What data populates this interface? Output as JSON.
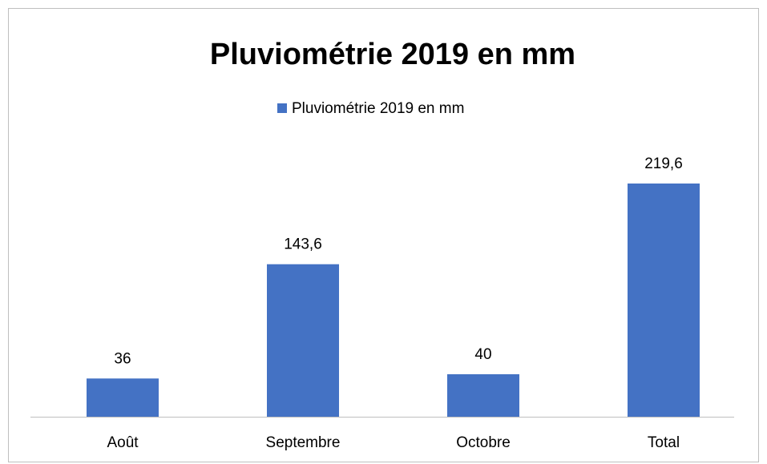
{
  "chart_data": {
    "type": "bar",
    "title": "Pluviométrie 2019 en mm",
    "categories": [
      "Août",
      "Septembre",
      "Octobre",
      "Total"
    ],
    "series": [
      {
        "name": "Pluviométrie 2019 en mm",
        "color": "#4472c4",
        "values": [
          36,
          143.6,
          40,
          219.6
        ],
        "value_labels": [
          "36",
          "143,6",
          "40",
          "219,6"
        ]
      }
    ],
    "legend": "top"
  }
}
